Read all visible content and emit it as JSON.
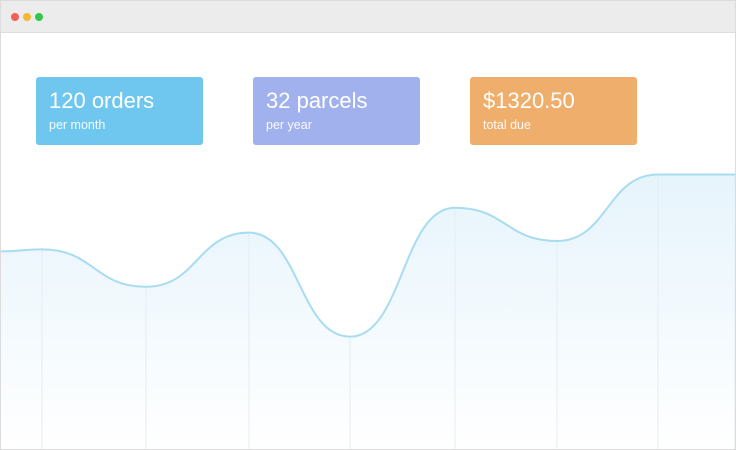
{
  "window": {
    "controls": [
      {
        "name": "close",
        "color": "#f25f57"
      },
      {
        "name": "minimize",
        "color": "#f5b82e"
      },
      {
        "name": "zoom",
        "color": "#33c748"
      }
    ]
  },
  "stats": [
    {
      "value": "120 orders",
      "label": "per month",
      "color": "#6fc7ef"
    },
    {
      "value": "32 parcels",
      "label": "per year",
      "color": "#a1b1ee"
    },
    {
      "value": "$1320.50",
      "label": "total due",
      "color": "#f0ae6c"
    }
  ],
  "chart_data": {
    "type": "area",
    "x": [
      0,
      1,
      2,
      3,
      4,
      5,
      6,
      7
    ],
    "values": [
      48,
      39,
      52,
      27,
      58,
      50,
      66,
      66
    ],
    "ylim": [
      0,
      100
    ],
    "grid": "vertical",
    "colors": {
      "line": "#a8dcf0",
      "fill": "#e6f4fc",
      "grid": "#e3edf4"
    }
  }
}
